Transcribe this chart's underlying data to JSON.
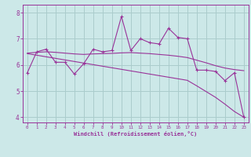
{
  "x": [
    0,
    1,
    2,
    3,
    4,
    5,
    6,
    7,
    8,
    9,
    10,
    11,
    12,
    13,
    14,
    15,
    16,
    17,
    18,
    19,
    20,
    21,
    22,
    23
  ],
  "y_zigzag": [
    5.7,
    6.5,
    6.6,
    6.1,
    6.1,
    5.65,
    6.05,
    6.6,
    6.5,
    6.55,
    7.85,
    6.55,
    7.0,
    6.85,
    6.8,
    7.4,
    7.05,
    7.0,
    5.8,
    5.8,
    5.75,
    5.4,
    5.7,
    4.0
  ],
  "y_smooth": [
    6.45,
    6.48,
    6.5,
    6.48,
    6.45,
    6.42,
    6.4,
    6.42,
    6.43,
    6.44,
    6.46,
    6.47,
    6.45,
    6.43,
    6.4,
    6.37,
    6.33,
    6.28,
    6.18,
    6.08,
    5.97,
    5.88,
    5.82,
    5.78
  ],
  "y_linear": [
    6.43,
    6.37,
    6.31,
    6.25,
    6.19,
    6.13,
    6.07,
    6.01,
    5.95,
    5.89,
    5.83,
    5.77,
    5.71,
    5.65,
    5.59,
    5.53,
    5.47,
    5.41,
    5.2,
    4.98,
    4.76,
    4.5,
    4.22,
    4.0
  ],
  "line_color": "#993399",
  "bg_color": "#cce8e8",
  "grid_color": "#aacccc",
  "xlabel": "Windchill (Refroidissement éolien,°C)",
  "ylim": [
    3.8,
    8.3
  ],
  "xlim": [
    -0.5,
    23.5
  ],
  "yticks": [
    4,
    5,
    6,
    7,
    8
  ],
  "xticks": [
    0,
    1,
    2,
    3,
    4,
    5,
    6,
    7,
    8,
    9,
    10,
    11,
    12,
    13,
    14,
    15,
    16,
    17,
    18,
    19,
    20,
    21,
    22,
    23
  ]
}
